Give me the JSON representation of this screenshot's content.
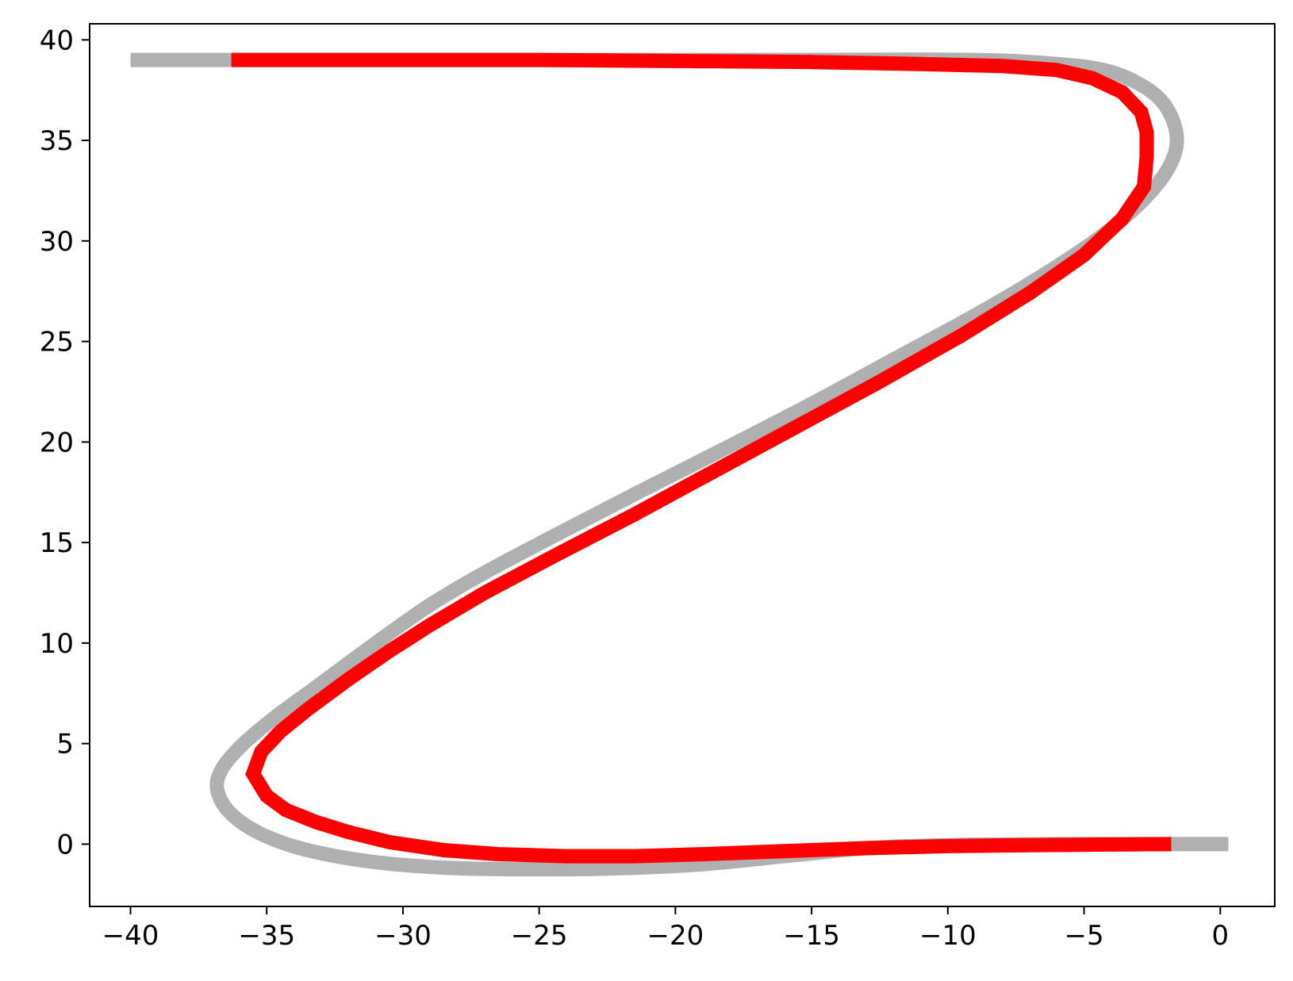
{
  "chart_data": {
    "type": "line",
    "title": "",
    "xlabel": "",
    "ylabel": "",
    "xlim": [
      -41.5,
      2.0
    ],
    "ylim": [
      -3.1,
      40.8
    ],
    "x_ticks": [
      -40,
      -35,
      -30,
      -25,
      -20,
      -15,
      -10,
      -5,
      0
    ],
    "x_tick_labels": [
      "−40",
      "−35",
      "−30",
      "−25",
      "−20",
      "−15",
      "−10",
      "−5",
      "0"
    ],
    "y_ticks": [
      0,
      5,
      10,
      15,
      20,
      25,
      30,
      35,
      40
    ],
    "y_tick_labels": [
      "0",
      "5",
      "10",
      "15",
      "20",
      "25",
      "30",
      "35",
      "40"
    ],
    "grid": false,
    "legend": "none",
    "series": [
      {
        "color": "#b0b0b0",
        "smooth": true,
        "points": [
          [
            0.3,
            0.0
          ],
          [
            -2.0,
            0.0
          ],
          [
            -6.0,
            0.0
          ],
          [
            -10.0,
            -0.05
          ],
          [
            -13.0,
            -0.2
          ],
          [
            -16.0,
            -0.6
          ],
          [
            -19.0,
            -1.0
          ],
          [
            -22.0,
            -1.2
          ],
          [
            -25.0,
            -1.25
          ],
          [
            -28.0,
            -1.2
          ],
          [
            -31.0,
            -0.9
          ],
          [
            -33.5,
            -0.3
          ],
          [
            -35.2,
            0.5
          ],
          [
            -36.3,
            1.5
          ],
          [
            -36.8,
            2.6
          ],
          [
            -36.7,
            3.6
          ],
          [
            -36.0,
            4.8
          ],
          [
            -34.8,
            6.2
          ],
          [
            -33.2,
            7.8
          ],
          [
            -31.0,
            10.0
          ],
          [
            -29.0,
            11.9
          ],
          [
            -27.0,
            13.5
          ],
          [
            -24.5,
            15.3
          ],
          [
            -21.5,
            17.4
          ],
          [
            -18.0,
            19.8
          ],
          [
            -15.0,
            21.9
          ],
          [
            -12.0,
            24.1
          ],
          [
            -9.0,
            26.3
          ],
          [
            -6.5,
            28.3
          ],
          [
            -4.5,
            30.1
          ],
          [
            -3.0,
            31.8
          ],
          [
            -2.0,
            33.4
          ],
          [
            -1.6,
            34.8
          ],
          [
            -1.8,
            36.2
          ],
          [
            -2.5,
            37.4
          ],
          [
            -4.0,
            38.4
          ],
          [
            -6.0,
            38.8
          ],
          [
            -9.0,
            39.0
          ],
          [
            -15.0,
            39.0
          ],
          [
            -20.0,
            39.0
          ],
          [
            -30.0,
            39.0
          ],
          [
            -40.0,
            39.0
          ]
        ]
      },
      {
        "color": "#ff0000",
        "smooth": false,
        "points": [
          [
            -1.8,
            0.0
          ],
          [
            -4.0,
            -0.02
          ],
          [
            -7.0,
            -0.05
          ],
          [
            -10.0,
            -0.1
          ],
          [
            -13.0,
            -0.2
          ],
          [
            -16.0,
            -0.35
          ],
          [
            -19.0,
            -0.5
          ],
          [
            -21.5,
            -0.6
          ],
          [
            -24.0,
            -0.6
          ],
          [
            -26.5,
            -0.5
          ],
          [
            -28.5,
            -0.3
          ],
          [
            -30.5,
            0.1
          ],
          [
            -32.0,
            0.6
          ],
          [
            -33.2,
            1.1
          ],
          [
            -34.3,
            1.7
          ],
          [
            -35.0,
            2.4
          ],
          [
            -35.5,
            3.5
          ],
          [
            -35.2,
            4.6
          ],
          [
            -34.5,
            5.6
          ],
          [
            -33.5,
            6.7
          ],
          [
            -32.0,
            8.2
          ],
          [
            -30.5,
            9.6
          ],
          [
            -29.0,
            10.9
          ],
          [
            -27.0,
            12.5
          ],
          [
            -24.5,
            14.3
          ],
          [
            -21.5,
            16.4
          ],
          [
            -18.5,
            18.6
          ],
          [
            -15.5,
            20.8
          ],
          [
            -12.5,
            23.0
          ],
          [
            -9.5,
            25.3
          ],
          [
            -7.0,
            27.4
          ],
          [
            -5.0,
            29.3
          ],
          [
            -3.6,
            31.1
          ],
          [
            -2.8,
            32.7
          ],
          [
            -2.7,
            34.2
          ],
          [
            -2.7,
            35.4
          ],
          [
            -2.9,
            36.4
          ],
          [
            -3.6,
            37.4
          ],
          [
            -4.7,
            38.1
          ],
          [
            -6.0,
            38.5
          ],
          [
            -8.0,
            38.7
          ],
          [
            -11.0,
            38.8
          ],
          [
            -15.0,
            38.9
          ],
          [
            -20.0,
            38.95
          ],
          [
            -25.0,
            39.0
          ],
          [
            -30.0,
            39.0
          ],
          [
            -36.3,
            39.0
          ]
        ]
      }
    ]
  }
}
